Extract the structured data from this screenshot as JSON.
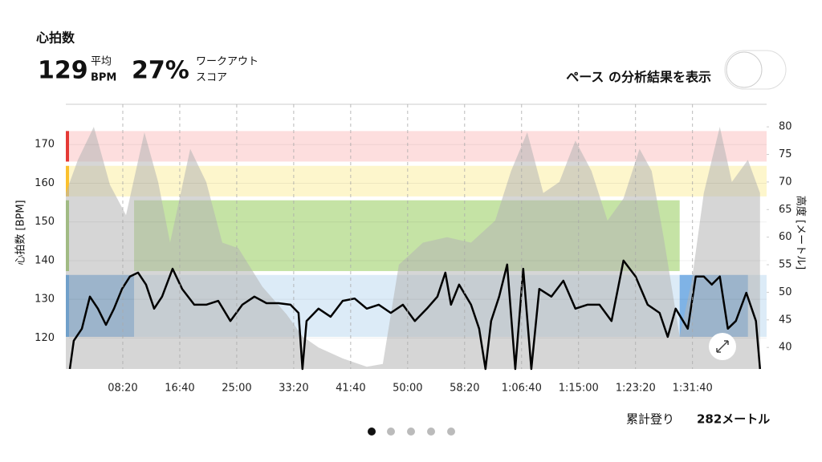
{
  "header": {
    "title": "心拍数",
    "avg_value": 129,
    "avg_label": "平均",
    "avg_unit": "BPM",
    "score_value": "27%",
    "score_label_1": "ワークアウト",
    "score_label_2": "スコア",
    "toggle_label": "ペース の分析結果を表示"
  },
  "chart_data": {
    "type": "line",
    "ylabel": "心拍数 [BPM]",
    "y2label": "高度 [メートル]",
    "xlim": [
      0,
      6150
    ],
    "ylim": [
      112,
      180
    ],
    "y2lim": [
      36.1,
      83.8
    ],
    "xticks": [
      {
        "value": 500,
        "label": "08:20"
      },
      {
        "value": 1000,
        "label": "16:40"
      },
      {
        "value": 1500,
        "label": "25:00"
      },
      {
        "value": 2000,
        "label": "33:20"
      },
      {
        "value": 2500,
        "label": "41:40"
      },
      {
        "value": 3000,
        "label": "50:00"
      },
      {
        "value": 3500,
        "label": "58:20"
      },
      {
        "value": 4000,
        "label": "1:06:40"
      },
      {
        "value": 4500,
        "label": "1:15:00"
      },
      {
        "value": 5000,
        "label": "1:23:20"
      },
      {
        "value": 5500,
        "label": "1:31:40"
      }
    ],
    "yticks": [
      120,
      130,
      140,
      150,
      160,
      170
    ],
    "y2ticks": [
      40,
      45,
      50,
      55,
      60,
      65,
      70,
      75,
      80
    ],
    "zones": [
      {
        "from": 165.6,
        "to": 173.5,
        "color": "#e53935",
        "fill": "#fddede"
      },
      {
        "from": 156.6,
        "to": 164.5,
        "color": "#fbc02d",
        "fill": "#fdf6cc"
      },
      {
        "from": 137.3,
        "to": 155.6,
        "color": "#8bc34a",
        "fill": "#c5e3a5",
        "xrange": [
          599,
          5387
        ]
      },
      {
        "from": 120.3,
        "to": 136.3,
        "color": "#1e88e5",
        "fill": "#dcebf7",
        "highlight": "#7fb3e6",
        "highlights": [
          [
            0,
            599
          ],
          [
            5387,
            5986
          ]
        ]
      }
    ],
    "series": [
      {
        "name": "高度",
        "axis": "y2",
        "color": "#b5b5b5",
        "x": [
          0,
          106,
          246,
          387,
          528,
          690,
          810,
          915,
          1092,
          1232,
          1373,
          1514,
          1725,
          1937,
          2077,
          2218,
          2430,
          2641,
          2782,
          2923,
          3134,
          3345,
          3556,
          3768,
          3908,
          4049,
          4190,
          4331,
          4472,
          4613,
          4754,
          4894,
          5035,
          5141,
          5246,
          5387,
          5493,
          5599,
          5739,
          5845,
          5986,
          6092
        ],
        "values": [
          68,
          74,
          80,
          69.5,
          64,
          79,
          70,
          59,
          76,
          70,
          59,
          58,
          51,
          46,
          42,
          40,
          38,
          36.5,
          37,
          55,
          59,
          60,
          59,
          63,
          72,
          79,
          68,
          70,
          77.5,
          72,
          63,
          67,
          76,
          72,
          60,
          42,
          52,
          68,
          80,
          70,
          74,
          68
        ]
      },
      {
        "name": "心拍数",
        "color": "#000000",
        "x": [
          35,
          70,
          141,
          211,
          282,
          352,
          423,
          493,
          563,
          634,
          704,
          775,
          845,
          937,
          1021,
          1127,
          1232,
          1338,
          1444,
          1549,
          1655,
          1761,
          1866,
          1972,
          2042,
          2077,
          2113,
          2218,
          2324,
          2430,
          2535,
          2641,
          2746,
          2852,
          2958,
          3063,
          3169,
          3261,
          3331,
          3380,
          3451,
          3556,
          3627,
          3683,
          3732,
          3803,
          3873,
          3944,
          4014,
          4085,
          4155,
          4261,
          4366,
          4472,
          4577,
          4683,
          4789,
          4894,
          5000,
          5106,
          5211,
          5282,
          5352,
          5458,
          5528,
          5599,
          5669,
          5739,
          5810,
          5880,
          5972,
          6056,
          6092
        ],
        "values": [
          112,
          119.3,
          122.4,
          130.7,
          127.6,
          123.4,
          127.6,
          132.7,
          135.9,
          136.9,
          133.8,
          127.6,
          130.7,
          137.9,
          132.7,
          128.6,
          128.6,
          129.6,
          124.4,
          128.6,
          130.7,
          129,
          129,
          128.6,
          126.5,
          112,
          124.4,
          127.6,
          125.5,
          129.6,
          130.2,
          127.6,
          128.6,
          126.5,
          128.6,
          124.4,
          127.6,
          130.7,
          136.9,
          128.6,
          133.8,
          128.6,
          122.4,
          112,
          124.4,
          130.7,
          139,
          112,
          137.9,
          112,
          132.7,
          130.7,
          134.8,
          127.6,
          128.6,
          128.6,
          124.4,
          140,
          135.9,
          128.6,
          126.5,
          120.3,
          127.6,
          122.4,
          135.9,
          135.9,
          133.8,
          135.9,
          122.4,
          124.4,
          131.7,
          124.4,
          112
        ]
      }
    ]
  },
  "footer": {
    "label": "累計登り",
    "value": "282メートル"
  }
}
